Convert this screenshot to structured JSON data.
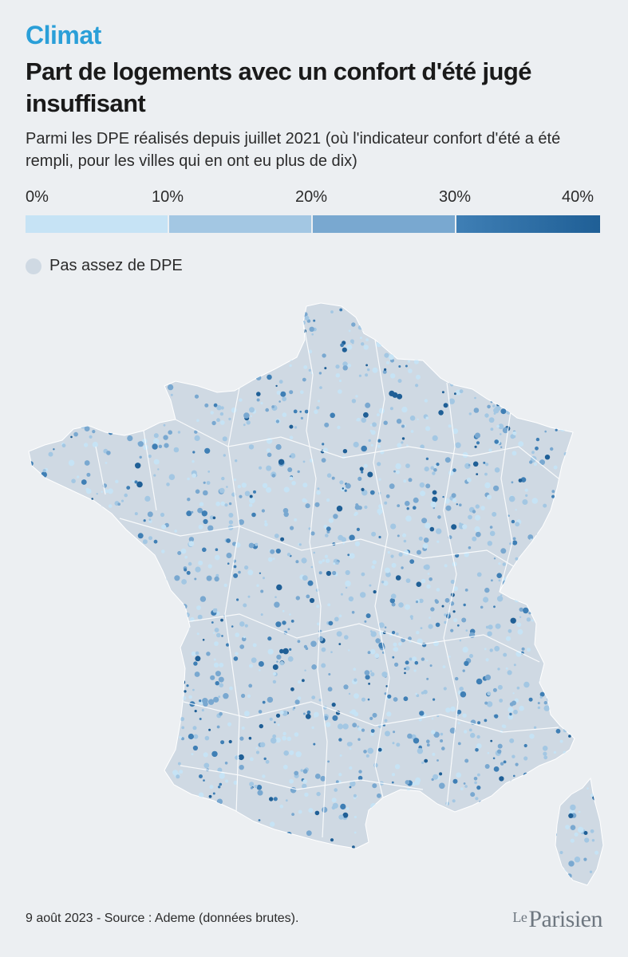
{
  "header": {
    "kicker": "Climat",
    "title": "Part de logements avec un confort d'été jugé insuffisant",
    "subtitle": "Parmi les DPE réalisés depuis juillet 2021 (où l'indicateur confort d'été a été rempli, pour les villes qui en ont eu plus de dix)"
  },
  "legend": {
    "ticks": [
      "0%",
      "10%",
      "20%",
      "30%",
      "40%"
    ],
    "bins": [
      {
        "from": 0,
        "to": 10,
        "color": "#c6e3f5"
      },
      {
        "from": 10,
        "to": 20,
        "color": "#a3c7e3"
      },
      {
        "from": 20,
        "to": 30,
        "color": "#79a8d0"
      },
      {
        "from": 30,
        "to": 40,
        "color": "#3f7fb5"
      }
    ],
    "max_color": "#1f5f96",
    "nodata_label": "Pas assez de DPE",
    "nodata_color": "#cfd9e3"
  },
  "map": {
    "land_color": "#cfd9e3",
    "border_color": "#ffffff",
    "background_color": "#eceff2"
  },
  "footer": {
    "source": "9 août 2023 - Source : Ademe (données brutes).",
    "logo_le": "Le",
    "logo_name": "Parisien"
  }
}
